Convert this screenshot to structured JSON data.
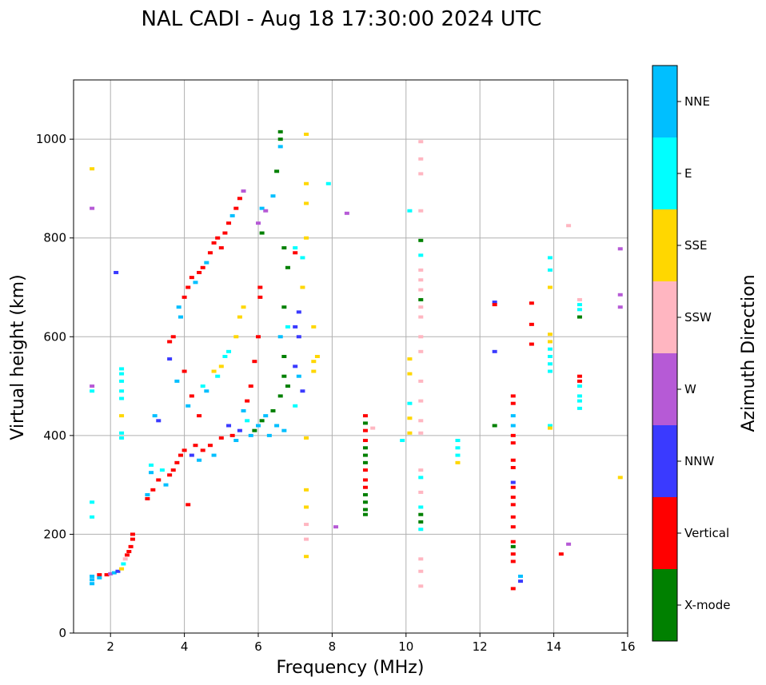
{
  "chart_data": {
    "type": "scatter",
    "title": "NAL CADI - Aug 18 17:30:00 2024 UTC",
    "xlabel": "Frequency (MHz)",
    "ylabel": "Virtual height (km)",
    "xlim": [
      1,
      16
    ],
    "ylim": [
      0,
      1120
    ],
    "xticks": [
      2,
      4,
      6,
      8,
      10,
      12,
      14,
      16
    ],
    "yticks": [
      0,
      200,
      400,
      600,
      800,
      1000
    ],
    "grid": true,
    "colorbar": {
      "label": "Azimuth Direction",
      "categories": [
        {
          "name": "X-mode",
          "color": "#008000"
        },
        {
          "name": "Vertical",
          "color": "#ff0000"
        },
        {
          "name": "NNW",
          "color": "#3a3aff"
        },
        {
          "name": "W",
          "color": "#b65ad6"
        },
        {
          "name": "SSW",
          "color": "#ffb6c1"
        },
        {
          "name": "SSE",
          "color": "#ffd700"
        },
        {
          "name": "E",
          "color": "#00ffff"
        },
        {
          "name": "NNE",
          "color": "#00bfff"
        }
      ]
    },
    "points": [
      [
        1.5,
        940,
        "SSE"
      ],
      [
        1.5,
        860,
        "W"
      ],
      [
        1.5,
        500,
        "W"
      ],
      [
        1.5,
        490,
        "E"
      ],
      [
        1.5,
        265,
        "E"
      ],
      [
        1.5,
        235,
        "E"
      ],
      [
        1.5,
        115,
        "NNE"
      ],
      [
        1.5,
        108,
        "NNE"
      ],
      [
        1.5,
        100,
        "NNE"
      ],
      [
        1.7,
        118,
        "Vertical"
      ],
      [
        1.7,
        112,
        "NNE"
      ],
      [
        1.9,
        118,
        "Vertical"
      ],
      [
        2.0,
        120,
        "W"
      ],
      [
        2.1,
        122,
        "NNE"
      ],
      [
        2.15,
        730,
        "NNW"
      ],
      [
        2.2,
        125,
        "NNW"
      ],
      [
        2.3,
        130,
        "SSE"
      ],
      [
        2.35,
        140,
        "E"
      ],
      [
        2.4,
        150,
        "SSW"
      ],
      [
        2.45,
        158,
        "Vertical"
      ],
      [
        2.5,
        165,
        "Vertical"
      ],
      [
        2.55,
        175,
        "Vertical"
      ],
      [
        2.6,
        190,
        "Vertical"
      ],
      [
        2.6,
        200,
        "Vertical"
      ],
      [
        2.3,
        535,
        "E"
      ],
      [
        2.3,
        525,
        "E"
      ],
      [
        2.3,
        510,
        "E"
      ],
      [
        2.3,
        490,
        "E"
      ],
      [
        2.3,
        475,
        "E"
      ],
      [
        2.3,
        440,
        "SSE"
      ],
      [
        2.3,
        405,
        "E"
      ],
      [
        2.3,
        395,
        "E"
      ],
      [
        3.0,
        280,
        "NNE"
      ],
      [
        3.0,
        272,
        "Vertical"
      ],
      [
        3.1,
        340,
        "E"
      ],
      [
        3.1,
        325,
        "NNE"
      ],
      [
        3.15,
        290,
        "Vertical"
      ],
      [
        3.2,
        440,
        "NNE"
      ],
      [
        3.3,
        430,
        "NNW"
      ],
      [
        3.3,
        310,
        "Vertical"
      ],
      [
        3.4,
        330,
        "E"
      ],
      [
        3.5,
        300,
        "NNE"
      ],
      [
        3.6,
        590,
        "Vertical"
      ],
      [
        3.6,
        555,
        "NNW"
      ],
      [
        3.6,
        320,
        "Vertical"
      ],
      [
        3.7,
        600,
        "Vertical"
      ],
      [
        3.7,
        330,
        "Vertical"
      ],
      [
        3.8,
        345,
        "Vertical"
      ],
      [
        3.8,
        510,
        "NNE"
      ],
      [
        3.85,
        660,
        "NNE"
      ],
      [
        3.9,
        640,
        "NNE"
      ],
      [
        3.9,
        360,
        "Vertical"
      ],
      [
        4.0,
        680,
        "Vertical"
      ],
      [
        4.0,
        530,
        "Vertical"
      ],
      [
        4.0,
        370,
        "Vertical"
      ],
      [
        4.1,
        700,
        "Vertical"
      ],
      [
        4.1,
        460,
        "NNE"
      ],
      [
        4.1,
        260,
        "Vertical"
      ],
      [
        4.2,
        720,
        "Vertical"
      ],
      [
        4.2,
        480,
        "Vertical"
      ],
      [
        4.2,
        360,
        "NNW"
      ],
      [
        4.3,
        710,
        "NNE"
      ],
      [
        4.3,
        380,
        "Vertical"
      ],
      [
        4.4,
        730,
        "Vertical"
      ],
      [
        4.4,
        440,
        "Vertical"
      ],
      [
        4.4,
        350,
        "NNE"
      ],
      [
        4.5,
        740,
        "Vertical"
      ],
      [
        4.5,
        500,
        "E"
      ],
      [
        4.5,
        370,
        "Vertical"
      ],
      [
        4.6,
        750,
        "NNE"
      ],
      [
        4.6,
        490,
        "NNE"
      ],
      [
        4.7,
        770,
        "Vertical"
      ],
      [
        4.7,
        380,
        "Vertical"
      ],
      [
        4.8,
        790,
        "Vertical"
      ],
      [
        4.8,
        530,
        "SSE"
      ],
      [
        4.8,
        360,
        "NNE"
      ],
      [
        4.9,
        800,
        "Vertical"
      ],
      [
        4.9,
        520,
        "E"
      ],
      [
        5.0,
        780,
        "Vertical"
      ],
      [
        5.0,
        540,
        "SSE"
      ],
      [
        5.0,
        395,
        "Vertical"
      ],
      [
        5.1,
        810,
        "Vertical"
      ],
      [
        5.1,
        560,
        "E"
      ],
      [
        5.2,
        830,
        "Vertical"
      ],
      [
        5.2,
        570,
        "E"
      ],
      [
        5.2,
        420,
        "NNW"
      ],
      [
        5.3,
        845,
        "NNE"
      ],
      [
        5.3,
        400,
        "Vertical"
      ],
      [
        5.4,
        860,
        "Vertical"
      ],
      [
        5.4,
        600,
        "SSE"
      ],
      [
        5.4,
        390,
        "NNE"
      ],
      [
        5.5,
        880,
        "Vertical"
      ],
      [
        5.5,
        640,
        "SSE"
      ],
      [
        5.5,
        410,
        "NNW"
      ],
      [
        5.6,
        895,
        "W"
      ],
      [
        5.6,
        660,
        "SSE"
      ],
      [
        5.6,
        450,
        "NNE"
      ],
      [
        5.7,
        470,
        "Vertical"
      ],
      [
        5.7,
        430,
        "E"
      ],
      [
        5.8,
        500,
        "Vertical"
      ],
      [
        5.8,
        400,
        "NNE"
      ],
      [
        5.9,
        550,
        "Vertical"
      ],
      [
        5.9,
        410,
        "X-mode"
      ],
      [
        6.0,
        600,
        "Vertical"
      ],
      [
        6.0,
        420,
        "NNE"
      ],
      [
        6.0,
        830,
        "W"
      ],
      [
        6.05,
        700,
        "Vertical"
      ],
      [
        6.05,
        680,
        "Vertical"
      ],
      [
        6.1,
        860,
        "NNE"
      ],
      [
        6.1,
        810,
        "X-mode"
      ],
      [
        6.1,
        430,
        "X-mode"
      ],
      [
        6.2,
        855,
        "W"
      ],
      [
        6.2,
        440,
        "NNE"
      ],
      [
        6.3,
        400,
        "NNE"
      ],
      [
        6.4,
        885,
        "NNE"
      ],
      [
        6.4,
        450,
        "X-mode"
      ],
      [
        6.5,
        935,
        "X-mode"
      ],
      [
        6.5,
        420,
        "NNE"
      ],
      [
        6.6,
        1015,
        "X-mode"
      ],
      [
        6.6,
        1000,
        "X-mode"
      ],
      [
        6.6,
        985,
        "NNE"
      ],
      [
        6.6,
        480,
        "X-mode"
      ],
      [
        6.6,
        600,
        "NNE"
      ],
      [
        6.7,
        520,
        "X-mode"
      ],
      [
        6.7,
        780,
        "X-mode"
      ],
      [
        6.7,
        660,
        "X-mode"
      ],
      [
        6.7,
        560,
        "X-mode"
      ],
      [
        6.7,
        410,
        "NNE"
      ],
      [
        6.8,
        740,
        "X-mode"
      ],
      [
        6.8,
        620,
        "E"
      ],
      [
        6.8,
        500,
        "X-mode"
      ],
      [
        7.0,
        780,
        "E"
      ],
      [
        7.0,
        770,
        "Vertical"
      ],
      [
        7.0,
        620,
        "NNW"
      ],
      [
        7.0,
        540,
        "NNW"
      ],
      [
        7.0,
        460,
        "E"
      ],
      [
        7.1,
        650,
        "NNW"
      ],
      [
        7.1,
        600,
        "NNW"
      ],
      [
        7.1,
        520,
        "NNE"
      ],
      [
        7.2,
        760,
        "E"
      ],
      [
        7.2,
        700,
        "SSE"
      ],
      [
        7.2,
        490,
        "NNW"
      ],
      [
        7.3,
        1010,
        "SSE"
      ],
      [
        7.3,
        910,
        "SSE"
      ],
      [
        7.3,
        870,
        "SSE"
      ],
      [
        7.3,
        800,
        "SSE"
      ],
      [
        7.3,
        290,
        "SSE"
      ],
      [
        7.3,
        255,
        "SSE"
      ],
      [
        7.3,
        220,
        "SSW"
      ],
      [
        7.3,
        190,
        "SSW"
      ],
      [
        7.3,
        155,
        "SSE"
      ],
      [
        7.3,
        395,
        "SSE"
      ],
      [
        7.5,
        620,
        "SSE"
      ],
      [
        7.5,
        550,
        "SSE"
      ],
      [
        7.5,
        530,
        "SSE"
      ],
      [
        7.6,
        560,
        "SSE"
      ],
      [
        7.9,
        910,
        "E"
      ],
      [
        8.1,
        215,
        "W"
      ],
      [
        8.4,
        850,
        "W"
      ],
      [
        8.9,
        440,
        "Vertical"
      ],
      [
        8.9,
        425,
        "X-mode"
      ],
      [
        8.9,
        410,
        "Vertical"
      ],
      [
        8.9,
        390,
        "Vertical"
      ],
      [
        8.9,
        375,
        "X-mode"
      ],
      [
        8.9,
        360,
        "X-mode"
      ],
      [
        8.9,
        345,
        "X-mode"
      ],
      [
        8.9,
        330,
        "Vertical"
      ],
      [
        8.9,
        310,
        "Vertical"
      ],
      [
        8.9,
        295,
        "Vertical"
      ],
      [
        8.9,
        280,
        "X-mode"
      ],
      [
        8.9,
        265,
        "X-mode"
      ],
      [
        8.9,
        250,
        "X-mode"
      ],
      [
        8.9,
        240,
        "X-mode"
      ],
      [
        9.1,
        415,
        "SSW"
      ],
      [
        9.9,
        390,
        "E"
      ],
      [
        10.1,
        855,
        "E"
      ],
      [
        10.1,
        555,
        "SSE"
      ],
      [
        10.1,
        525,
        "SSE"
      ],
      [
        10.1,
        465,
        "E"
      ],
      [
        10.1,
        435,
        "SSE"
      ],
      [
        10.1,
        405,
        "SSE"
      ],
      [
        10.4,
        995,
        "SSW"
      ],
      [
        10.4,
        960,
        "SSW"
      ],
      [
        10.4,
        930,
        "SSW"
      ],
      [
        10.4,
        855,
        "SSW"
      ],
      [
        10.4,
        795,
        "X-mode"
      ],
      [
        10.4,
        765,
        "E"
      ],
      [
        10.4,
        735,
        "SSW"
      ],
      [
        10.4,
        715,
        "SSW"
      ],
      [
        10.4,
        695,
        "SSW"
      ],
      [
        10.4,
        675,
        "X-mode"
      ],
      [
        10.4,
        660,
        "SSW"
      ],
      [
        10.4,
        640,
        "SSW"
      ],
      [
        10.4,
        600,
        "SSW"
      ],
      [
        10.4,
        570,
        "SSW"
      ],
      [
        10.4,
        510,
        "SSW"
      ],
      [
        10.4,
        470,
        "SSW"
      ],
      [
        10.4,
        430,
        "SSW"
      ],
      [
        10.4,
        405,
        "SSW"
      ],
      [
        10.4,
        330,
        "SSW"
      ],
      [
        10.4,
        315,
        "E"
      ],
      [
        10.4,
        285,
        "SSW"
      ],
      [
        10.4,
        255,
        "E"
      ],
      [
        10.4,
        240,
        "X-mode"
      ],
      [
        10.4,
        225,
        "X-mode"
      ],
      [
        10.4,
        210,
        "E"
      ],
      [
        10.4,
        150,
        "SSW"
      ],
      [
        10.4,
        125,
        "SSW"
      ],
      [
        10.4,
        95,
        "SSW"
      ],
      [
        11.4,
        390,
        "E"
      ],
      [
        11.4,
        375,
        "E"
      ],
      [
        11.4,
        360,
        "E"
      ],
      [
        11.4,
        345,
        "SSE"
      ],
      [
        12.4,
        670,
        "NNW"
      ],
      [
        12.4,
        665,
        "Vertical"
      ],
      [
        12.4,
        570,
        "NNW"
      ],
      [
        12.4,
        420,
        "X-mode"
      ],
      [
        12.9,
        480,
        "Vertical"
      ],
      [
        12.9,
        465,
        "Vertical"
      ],
      [
        12.9,
        440,
        "NNE"
      ],
      [
        12.9,
        420,
        "NNE"
      ],
      [
        12.9,
        400,
        "Vertical"
      ],
      [
        12.9,
        385,
        "Vertical"
      ],
      [
        12.9,
        350,
        "Vertical"
      ],
      [
        12.9,
        335,
        "Vertical"
      ],
      [
        12.9,
        305,
        "NNW"
      ],
      [
        12.9,
        295,
        "Vertical"
      ],
      [
        12.9,
        275,
        "Vertical"
      ],
      [
        12.9,
        260,
        "Vertical"
      ],
      [
        12.9,
        235,
        "Vertical"
      ],
      [
        12.9,
        215,
        "Vertical"
      ],
      [
        12.9,
        185,
        "Vertical"
      ],
      [
        12.9,
        175,
        "X-mode"
      ],
      [
        12.9,
        160,
        "Vertical"
      ],
      [
        12.9,
        145,
        "Vertical"
      ],
      [
        12.9,
        90,
        "Vertical"
      ],
      [
        13.1,
        115,
        "NNE"
      ],
      [
        13.1,
        105,
        "NNW"
      ],
      [
        13.4,
        668,
        "Vertical"
      ],
      [
        13.4,
        625,
        "Vertical"
      ],
      [
        13.4,
        585,
        "Vertical"
      ],
      [
        13.9,
        605,
        "SSE"
      ],
      [
        13.9,
        590,
        "SSE"
      ],
      [
        13.9,
        575,
        "E"
      ],
      [
        13.9,
        560,
        "E"
      ],
      [
        13.9,
        545,
        "E"
      ],
      [
        13.9,
        530,
        "E"
      ],
      [
        13.9,
        420,
        "E"
      ],
      [
        13.9,
        415,
        "SSE"
      ],
      [
        13.9,
        760,
        "E"
      ],
      [
        13.9,
        735,
        "E"
      ],
      [
        13.9,
        700,
        "SSE"
      ],
      [
        14.2,
        160,
        "Vertical"
      ],
      [
        14.4,
        825,
        "SSW"
      ],
      [
        14.4,
        180,
        "W"
      ],
      [
        14.7,
        675,
        "SSW"
      ],
      [
        14.7,
        665,
        "E"
      ],
      [
        14.7,
        655,
        "E"
      ],
      [
        14.7,
        640,
        "X-mode"
      ],
      [
        14.7,
        520,
        "Vertical"
      ],
      [
        14.7,
        510,
        "Vertical"
      ],
      [
        14.7,
        500,
        "E"
      ],
      [
        14.7,
        480,
        "E"
      ],
      [
        14.7,
        470,
        "E"
      ],
      [
        14.7,
        455,
        "E"
      ],
      [
        15.8,
        778,
        "W"
      ],
      [
        15.8,
        685,
        "W"
      ],
      [
        15.8,
        660,
        "W"
      ],
      [
        15.8,
        315,
        "SSE"
      ]
    ]
  }
}
